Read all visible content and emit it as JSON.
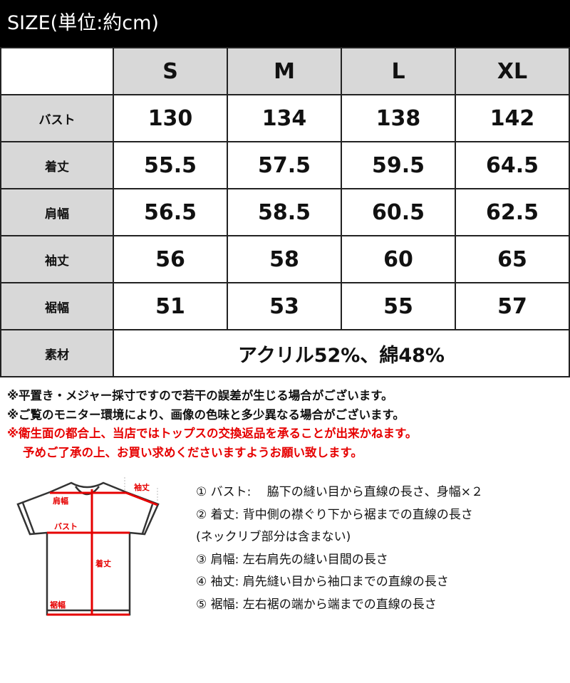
{
  "title": "SIZE(単位:約cm)",
  "sizes": [
    "S",
    "M",
    "L",
    "XL"
  ],
  "rows": [
    {
      "label": "バスト",
      "values": [
        "130",
        "134",
        "138",
        "142"
      ]
    },
    {
      "label": "着丈",
      "values": [
        "55.5",
        "57.5",
        "59.5",
        "64.5"
      ]
    },
    {
      "label": "肩幅",
      "values": [
        "56.5",
        "58.5",
        "60.5",
        "62.5"
      ]
    },
    {
      "label": "袖丈",
      "values": [
        "56",
        "58",
        "60",
        "65"
      ]
    },
    {
      "label": "裾幅",
      "values": [
        "51",
        "53",
        "55",
        "57"
      ]
    }
  ],
  "material": {
    "label": "素材",
    "value": "アクリル52%、綿48%"
  },
  "notes": [
    "※平置き・メジャー採寸ですので若干の誤差が生じる場合がございます。",
    "※ご覧のモニター環境により、画像の色味と多少異なる場合がございます。"
  ],
  "red_notes": [
    "※衛生面の都合上、当店ではトップスの交換返品を承ることが出来かねます。",
    "予めご了承の上、お買い求めくださいますようお願い致します。"
  ],
  "diagram_labels": {
    "sleeve": "袖丈",
    "shoulder": "肩幅",
    "bust": "バスト",
    "length": "着丈",
    "hem": "裾幅"
  },
  "descriptions": [
    "① バスト:　 脇下の縫い目から直線の長さ、身幅×２",
    "② 着丈:  背中側の襟ぐり下から裾までの直線の長さ",
    "(ネックリブ部分は含まない)",
    "③ 肩幅:  左右肩先の縫い目間の長さ",
    "④ 袖丈:  肩先縫い目から袖口までの直線の長さ",
    "⑤ 裾幅:  左右裾の端から端までの直線の長さ"
  ],
  "colors": {
    "header": "#000000",
    "cell_gray": "#d8d8d8",
    "accent_red": "#e60000"
  }
}
